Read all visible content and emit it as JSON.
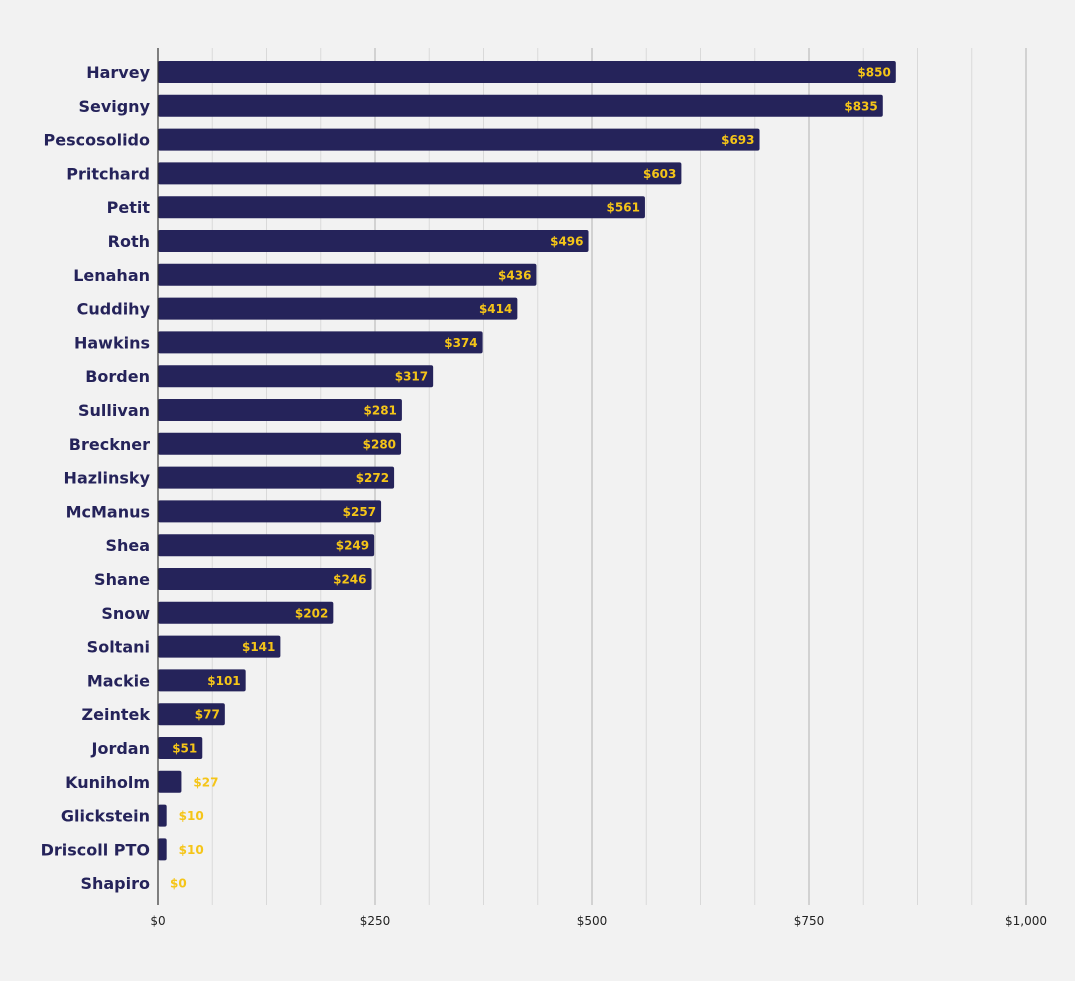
{
  "chart_data": {
    "type": "bar",
    "orientation": "horizontal",
    "categories": [
      "Harvey",
      "Sevigny",
      "Pescosolido",
      "Pritchard",
      "Petit",
      "Roth",
      "Lenahan",
      "Cuddihy",
      "Hawkins",
      "Borden",
      "Sullivan",
      "Breckner",
      "Hazlinsky",
      "McManus",
      "Shea",
      "Shane",
      "Snow",
      "Soltani",
      "Mackie",
      "Zeintek",
      "Jordan",
      "Kuniholm",
      "Glickstein",
      "Driscoll PTO",
      "Shapiro"
    ],
    "values": [
      850,
      835,
      693,
      603,
      561,
      496,
      436,
      414,
      374,
      317,
      281,
      280,
      272,
      257,
      249,
      246,
      202,
      141,
      101,
      77,
      51,
      27,
      10,
      10,
      0
    ],
    "data_labels": [
      "$850",
      "$835",
      "$693",
      "$603",
      "$561",
      "$496",
      "$436",
      "$414",
      "$374",
      "$317",
      "$281",
      "$280",
      "$272",
      "$257",
      "$249",
      "$246",
      "$202",
      "$141",
      "$101",
      "$77",
      "$51",
      "$27",
      "$10",
      "$10",
      "$0"
    ],
    "xlim": [
      0,
      1000
    ],
    "x_ticks": [
      0,
      250,
      500,
      750,
      1000
    ],
    "x_tick_labels": [
      "$0",
      "$250",
      "$500",
      "$750",
      "$1,000"
    ],
    "minor_gridlines": true,
    "grid": true,
    "title": "",
    "xlabel": "",
    "ylabel": "",
    "colors": {
      "bar": "#25235a",
      "value_label": "#f5c518",
      "category_label": "#25235a",
      "major_grid": "#b3b3b3",
      "minor_grid": "#d9d9d9",
      "axis": "#333333",
      "tick_label": "#222222",
      "background": "#f2f2f2"
    }
  }
}
